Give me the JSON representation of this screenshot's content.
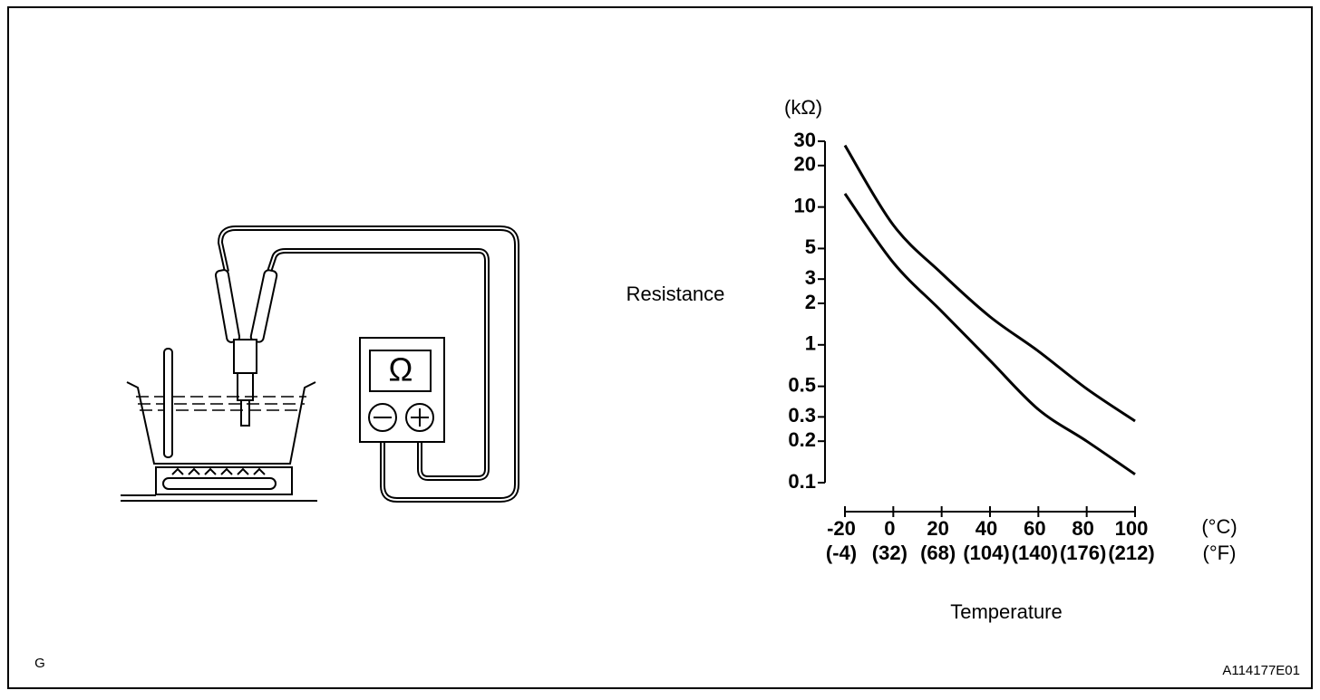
{
  "chart_data": {
    "type": "line",
    "y_unit": "(kΩ)",
    "y_label": "Resistance",
    "x_label": "Temperature",
    "x_unit": "(°C)",
    "x2_unit": "(°F)",
    "x": [
      -20,
      0,
      20,
      40,
      60,
      80,
      100
    ],
    "series": [
      {
        "color": "#000000",
        "values": [
          28,
          7.4,
          3.3,
          1.6,
          0.9,
          0.48,
          0.28
        ]
      },
      {
        "color": "#000000",
        "values": [
          12.5,
          3.95,
          1.75,
          0.77,
          0.34,
          0.2,
          0.115
        ]
      }
    ],
    "xlim": [
      -20,
      100
    ],
    "xticks": [
      -20,
      0,
      20,
      40,
      60,
      80,
      100
    ],
    "x2_labels": [
      "(-4)",
      "(32)",
      "(68)",
      "(104)",
      "(140)",
      "(176)",
      "(212)"
    ],
    "ylim": [
      0.1,
      30
    ],
    "yticks": [
      30,
      20,
      10,
      5,
      3,
      2,
      1,
      0.5,
      0.3,
      0.2,
      0.1
    ],
    "log_y": true
  },
  "diagram": {
    "meter_symbol": "Ω"
  },
  "footer": {
    "left": "G",
    "right": "A114177E01"
  }
}
